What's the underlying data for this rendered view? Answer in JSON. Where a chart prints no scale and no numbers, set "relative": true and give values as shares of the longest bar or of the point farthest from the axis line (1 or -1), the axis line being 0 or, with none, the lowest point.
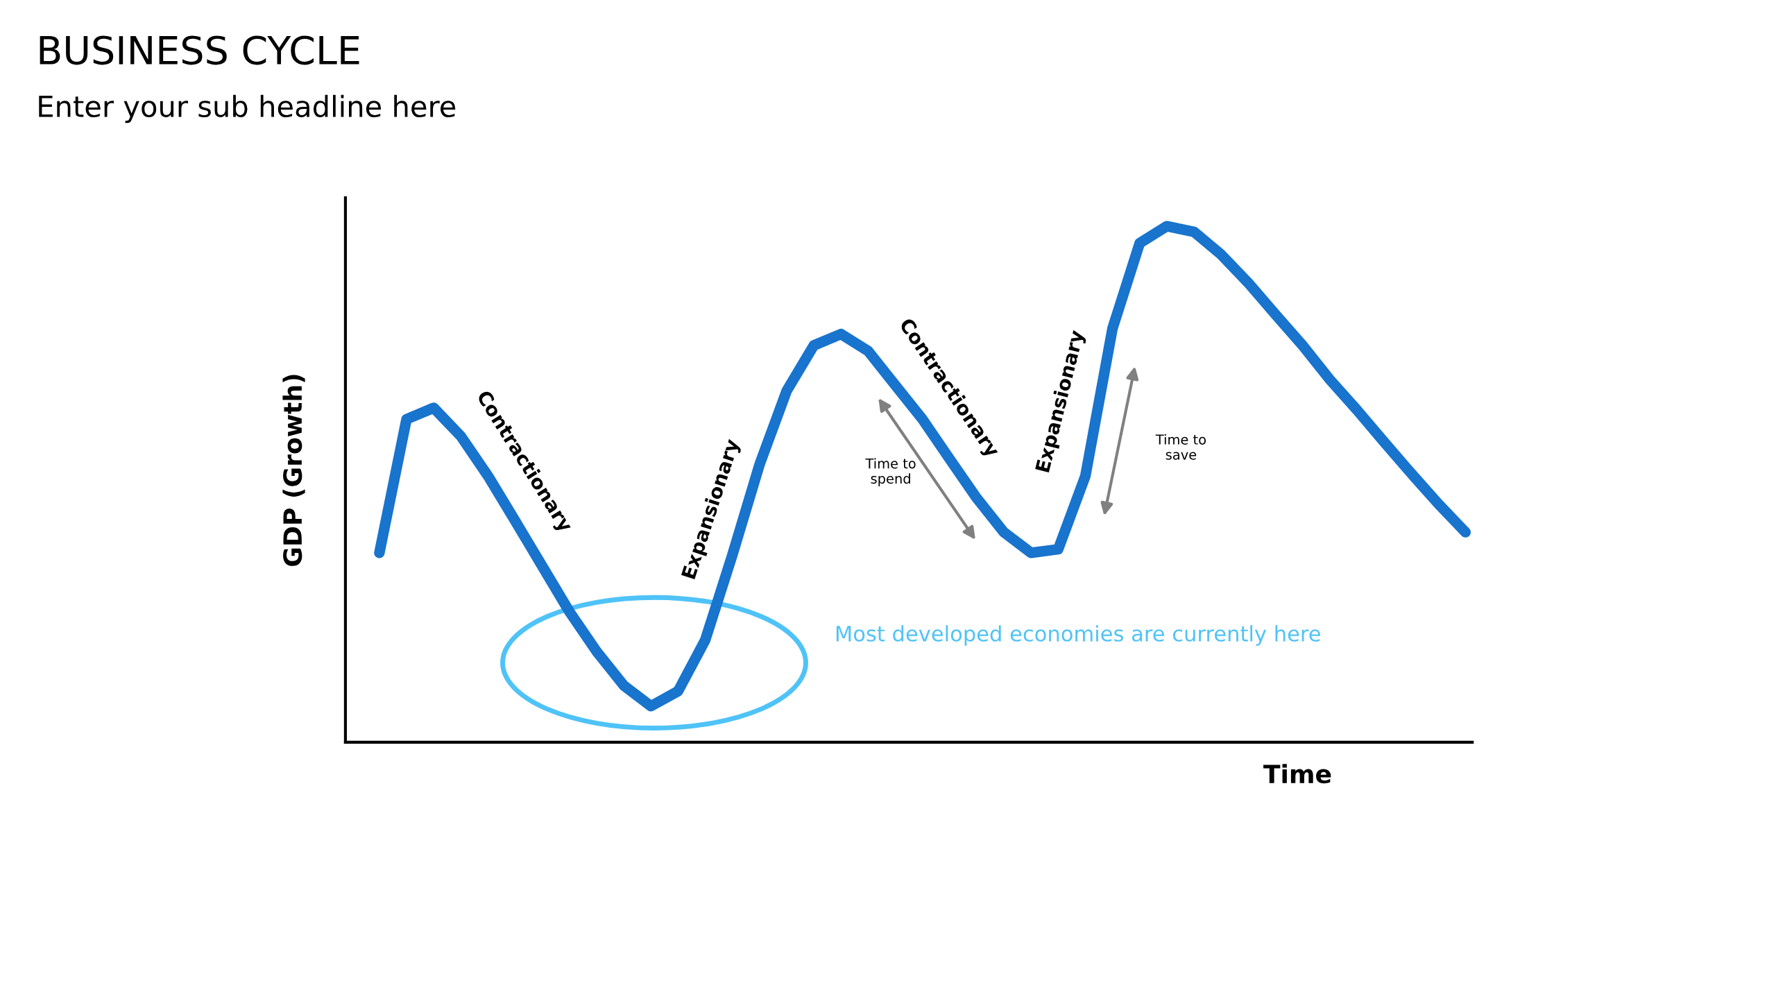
{
  "chart_data": {
    "type": "line",
    "relative": true,
    "title": "BUSINESS CYCLE",
    "subtitle": "Enter your sub headline here",
    "xlabel": "Time",
    "ylabel": "GDP (Growth)",
    "categories": [
      null,
      null,
      null,
      null,
      null,
      null,
      null,
      null,
      null,
      null,
      null,
      null,
      null,
      null,
      null,
      null,
      null,
      null,
      null,
      null,
      null,
      null,
      null,
      null,
      null,
      null,
      null,
      null,
      null,
      null,
      null,
      null,
      null,
      null,
      null,
      null,
      null,
      null,
      null,
      null,
      null
    ],
    "series": [
      {
        "color": "#1874cd",
        "values": [
          0.367,
          0.626,
          0.648,
          0.593,
          0.516,
          0.429,
          0.341,
          0.253,
          0.176,
          0.11,
          0.07,
          0.099,
          0.198,
          0.363,
          0.538,
          0.681,
          0.769,
          0.791,
          0.758,
          0.692,
          0.626,
          0.549,
          0.473,
          0.407,
          0.367,
          0.374,
          0.516,
          0.802,
          0.967,
          1,
          0.989,
          0.945,
          0.89,
          0.829,
          0.769,
          0.703,
          0.644,
          0.582,
          0.521,
          0.462,
          0.407
        ]
      }
    ],
    "annotations": [
      "Contractionary",
      "Expansionary",
      "Contractionary",
      "Expansionary",
      "Time to\nspend",
      "Time to\nsave",
      "Most developed economies are currently here"
    ]
  }
}
